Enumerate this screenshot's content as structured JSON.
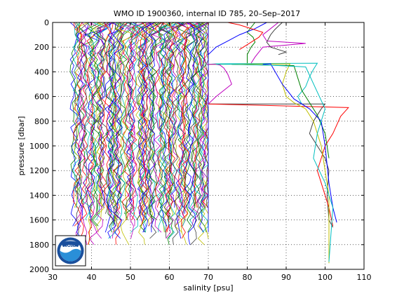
{
  "chart_data": {
    "type": "line",
    "title": "WMO ID 1900360, internal ID 785, 20–Sep–2017",
    "xlabel": "salinity [psu]",
    "ylabel": "pressure [dbar]",
    "xlim": [
      30,
      110
    ],
    "ylim": [
      0,
      2000
    ],
    "y_reversed": true,
    "grid": "dotted",
    "xticks": [
      "30",
      "40",
      "50",
      "60",
      "70",
      "80",
      "90",
      "100",
      "110"
    ],
    "yticks": [
      "0",
      "200",
      "400",
      "600",
      "800",
      "1000",
      "1200",
      "1400",
      "1600",
      "1800",
      "2000"
    ],
    "logo": "NOAA",
    "series_colors": [
      "#0000ff",
      "#008000",
      "#ff0000",
      "#00bfbf",
      "#bf00bf",
      "#bfbf00",
      "#404040"
    ],
    "dense_band": {
      "x_min": 34.5,
      "x_max": 70,
      "profiles": 120,
      "p_min": 0,
      "p_max": 1850
    },
    "series": [
      {
        "x": [
          82,
          81,
          80,
          81.5,
          82,
          81,
          80,
          80
        ],
        "y": [
          0,
          40,
          80,
          120,
          160,
          200,
          260,
          330
        ]
      },
      {
        "x": [
          88,
          86,
          84,
          85,
          95,
          84,
          82,
          81
        ],
        "y": [
          0,
          50,
          100,
          150,
          170,
          200,
          280,
          330
        ]
      },
      {
        "x": [
          85,
          82,
          78,
          75,
          72,
          70
        ],
        "y": [
          0,
          50,
          100,
          150,
          200,
          260
        ]
      },
      {
        "x": [
          70,
          72,
          98,
          97,
          96,
          95,
          93,
          94
        ],
        "y": [
          340,
          335,
          330,
          380,
          440,
          520,
          600,
          660
        ]
      },
      {
        "x": [
          70,
          100,
          99,
          97,
          96,
          98,
          100,
          101,
          100.5,
          101,
          102
        ],
        "y": [
          660,
          660,
          700,
          800,
          900,
          1000,
          1100,
          1200,
          1400,
          1600,
          1660
        ]
      },
      {
        "x": [
          70,
          106,
          104,
          102,
          100,
          99,
          98,
          99,
          101,
          102
        ],
        "y": [
          660,
          690,
          760,
          900,
          1000,
          1100,
          1200,
          1300,
          1500,
          1650
        ]
      },
      {
        "x": [
          70,
          91,
          90,
          89,
          90,
          92,
          95,
          97,
          99,
          101,
          101
        ],
        "y": [
          340,
          335,
          400,
          500,
          600,
          650,
          700,
          800,
          1000,
          1400,
          1950
        ]
      },
      {
        "x": [
          76,
          92,
          93,
          94,
          96,
          98,
          100,
          101
        ],
        "y": [
          340,
          350,
          450,
          550,
          650,
          750,
          900,
          1100
        ]
      },
      {
        "x": [
          70,
          72,
          76,
          75,
          74,
          73,
          72,
          70
        ],
        "y": [
          660,
          600,
          500,
          420,
          370,
          345,
          340,
          340
        ]
      },
      {
        "x": [
          84,
          86,
          89,
          92,
          96,
          99,
          100,
          101,
          102,
          103
        ],
        "y": [
          340,
          335,
          500,
          620,
          700,
          800,
          1000,
          1300,
          1500,
          1620
        ]
      },
      {
        "x": [
          72,
          75,
          85,
          95,
          100,
          98,
          97,
          100,
          102,
          101
        ],
        "y": [
          340,
          338,
          345,
          360,
          700,
          900,
          1100,
          1300,
          1500,
          1940
        ]
      },
      {
        "x": [
          89,
          88,
          87,
          86,
          85,
          86,
          88,
          90,
          89,
          88
        ],
        "y": [
          0,
          30,
          60,
          100,
          160,
          200,
          220,
          240,
          250,
          260
        ]
      },
      {
        "x": [
          75,
          78,
          80,
          82,
          84,
          83,
          80,
          78
        ],
        "y": [
          0,
          20,
          40,
          60,
          80,
          120,
          180,
          220
        ]
      }
    ]
  }
}
